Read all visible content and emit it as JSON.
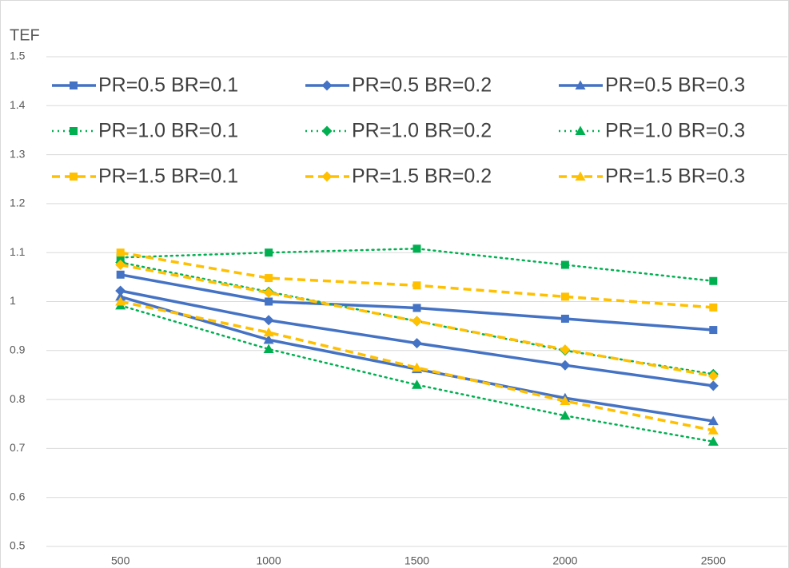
{
  "chart_data": {
    "type": "line",
    "y_label": "TEF",
    "categories": [
      "500",
      "1000",
      "1500",
      "2000",
      "2500"
    ],
    "ylim": [
      0.5,
      1.5
    ],
    "yticks": [
      0.5,
      0.6,
      0.7,
      0.8,
      0.9,
      1,
      1.1,
      1.2,
      1.3,
      1.4,
      1.5
    ],
    "grid": true,
    "series": [
      {
        "name": "PR=0.5 BR=0.1",
        "color": "#4472c4",
        "dash": "solid",
        "marker": "square",
        "values": [
          1.055,
          1.0,
          0.987,
          0.965,
          0.942
        ]
      },
      {
        "name": "PR=0.5 BR=0.2",
        "color": "#4472c4",
        "dash": "solid",
        "marker": "diamond",
        "values": [
          1.022,
          0.962,
          0.915,
          0.87,
          0.828
        ]
      },
      {
        "name": "PR=0.5 BR=0.3",
        "color": "#4472c4",
        "dash": "solid",
        "marker": "triangle",
        "values": [
          1.01,
          0.922,
          0.862,
          0.803,
          0.756
        ]
      },
      {
        "name": "PR=1.0 BR=0.1",
        "color": "#00b050",
        "dash": "dot",
        "marker": "square",
        "values": [
          1.09,
          1.1,
          1.108,
          1.075,
          1.042
        ]
      },
      {
        "name": "PR=1.0 BR=0.2",
        "color": "#00b050",
        "dash": "dot",
        "marker": "diamond",
        "values": [
          1.08,
          1.02,
          0.96,
          0.9,
          0.852
        ]
      },
      {
        "name": "PR=1.0 BR=0.3",
        "color": "#00b050",
        "dash": "dot",
        "marker": "triangle",
        "values": [
          0.992,
          0.903,
          0.83,
          0.767,
          0.714
        ]
      },
      {
        "name": "PR=1.5 BR=0.1",
        "color": "#ffc000",
        "dash": "dash",
        "marker": "square",
        "values": [
          1.1,
          1.048,
          1.033,
          1.01,
          0.988
        ]
      },
      {
        "name": "PR=1.5 BR=0.2",
        "color": "#ffc000",
        "dash": "dash",
        "marker": "diamond",
        "values": [
          1.075,
          1.018,
          0.96,
          0.902,
          0.848
        ]
      },
      {
        "name": "PR=1.5 BR=0.3",
        "color": "#ffc000",
        "dash": "dash",
        "marker": "triangle",
        "values": [
          1.0,
          0.937,
          0.865,
          0.797,
          0.737
        ]
      }
    ]
  }
}
